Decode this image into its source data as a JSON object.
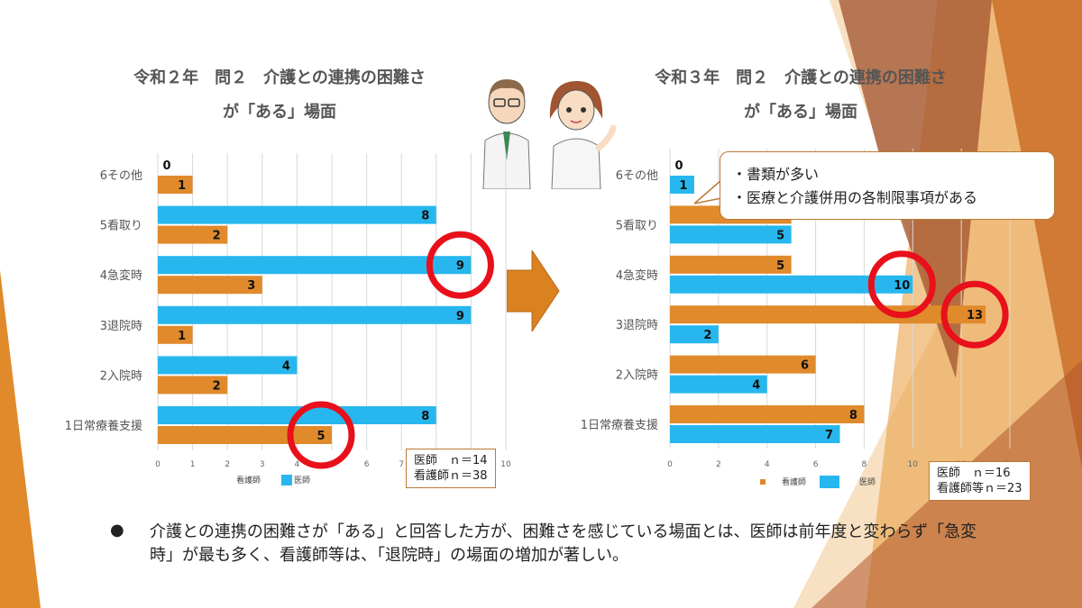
{
  "colors": {
    "nurse": "#e08a2c",
    "doctor": "#27b7ee",
    "highlight_circle": "#e8101a",
    "accent_brown": "#b05a2a"
  },
  "left": {
    "title_line1": "令和２年　問２　介護との連携の困難さ",
    "title_line2": "が「ある」場面",
    "n_box": "医師　ｎ＝14\n看護師ｎ＝38",
    "legend_nurse": "看護師",
    "legend_doctor": "医師"
  },
  "right": {
    "title_line1": "令和３年　問２　介護との連携の困難さ",
    "title_line2": "が「ある」場面",
    "n_box": "医師　ｎ＝16\n看護師等ｎ＝23",
    "legend_nurse": "看護師",
    "legend_doctor": "医師",
    "callout_lines": [
      "・書類が多い",
      "・医療と介護併用の各制限事項がある"
    ]
  },
  "note": "介護との連携の困難さが「ある」と回答した方が、困難さを感じている場面とは、医師は前年度と変わらず「急変時」が最も多く、看護師等は、「退院時」の場面の増加が著しい。",
  "chart_data": [
    {
      "type": "bar",
      "orientation": "horizontal",
      "title": "令和２年　問２　介護との連携の困難さが「ある」場面",
      "categories": [
        "6その他",
        "5看取り",
        "4急変時",
        "3退院時",
        "2入院時",
        "1日常療養支援"
      ],
      "series": [
        {
          "name": "医師",
          "values": [
            0,
            8,
            9,
            9,
            4,
            8
          ]
        },
        {
          "name": "看護師",
          "values": [
            1,
            2,
            3,
            1,
            2,
            5
          ]
        }
      ],
      "xlim": [
        0,
        10
      ],
      "xticks": [
        0,
        1,
        2,
        3,
        4,
        5,
        6,
        7,
        8,
        9,
        10
      ],
      "grid": true,
      "legend": "bottom",
      "highlighted": [
        {
          "category": "4急変時",
          "series": "医師"
        },
        {
          "category": "1日常療養支援",
          "series": "看護師"
        }
      ]
    },
    {
      "type": "bar",
      "orientation": "horizontal",
      "title": "令和３年　問２　介護との連携の困難さが「ある」場面",
      "categories": [
        "6その他",
        "5看取り",
        "4急変時",
        "3退院時",
        "2入院時",
        "1日常療養支援"
      ],
      "series": [
        {
          "name": "看護師",
          "values": [
            0,
            5,
            5,
            13,
            6,
            8
          ]
        },
        {
          "name": "医師",
          "values": [
            1,
            5,
            10,
            2,
            4,
            7
          ]
        }
      ],
      "xlim": [
        0,
        14
      ],
      "xticks": [
        0,
        2,
        4,
        6,
        8,
        10,
        12,
        14
      ],
      "grid": true,
      "legend": "bottom",
      "highlighted": [
        {
          "category": "4急変時",
          "series": "医師"
        },
        {
          "category": "3退院時",
          "series": "看護師"
        }
      ]
    }
  ]
}
